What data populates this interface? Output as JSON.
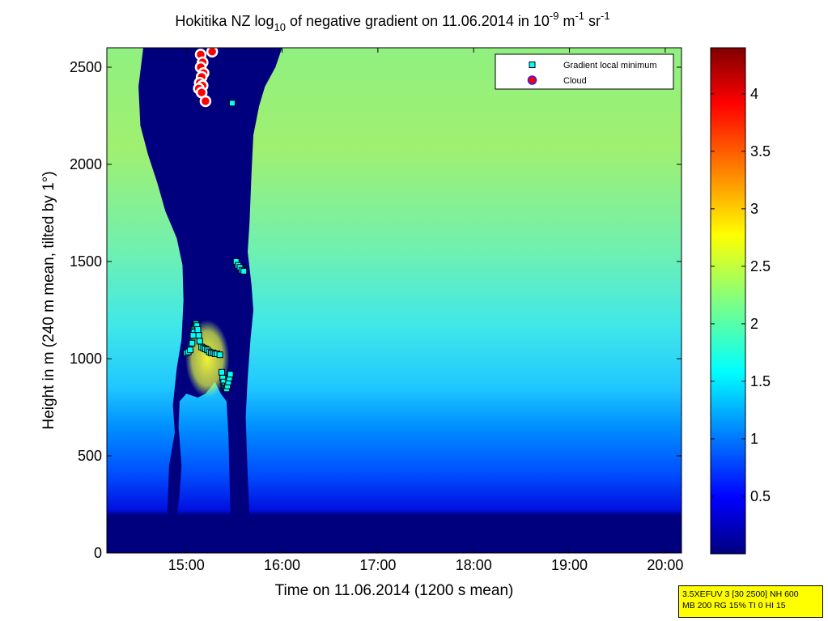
{
  "chart_data": {
    "type": "heatmap",
    "title": {
      "prefix": "Hokitika NZ log",
      "log_sub": "10",
      "middle": " of negative gradient on 11.06.2014 in 10",
      "exp1": "-9",
      "unit1": " m",
      "exp2": "-1",
      "unit2": " sr",
      "exp3": "-1"
    },
    "xlabel": "Time on 11.06.2014 (1200 s mean)",
    "ylabel": "Height in m (240 m mean, tilted by 1°)",
    "x_ticks": [
      "15:00",
      "16:00",
      "17:00",
      "18:00",
      "19:00",
      "20:00"
    ],
    "x_tick_hours": [
      15,
      16,
      17,
      18,
      19,
      20
    ],
    "xlim_hours": [
      14.17,
      20.17
    ],
    "y_ticks": [
      0,
      500,
      1000,
      1500,
      2000,
      2500
    ],
    "ylim": [
      0,
      2600
    ],
    "colorbar": {
      "ticks": [
        0.5,
        1,
        1.5,
        2,
        2.5,
        3,
        3.5,
        4
      ],
      "tick_labels": [
        "0.5",
        "1",
        "1.5",
        "2",
        "2.5",
        "3",
        "3.5",
        "4"
      ],
      "range": [
        0,
        4.4
      ],
      "colormap": "jet"
    },
    "legend": {
      "placement": "top-right",
      "entries": [
        {
          "label": "Gradient local minimum",
          "marker": "square",
          "color": "#00ffff"
        },
        {
          "label": "Cloud",
          "marker": "circle",
          "color": "#ff0000"
        }
      ]
    },
    "gradient_local_minimum": [
      [
        15.48,
        2315
      ],
      [
        15.15,
        2495
      ],
      [
        15.52,
        1500
      ],
      [
        15.54,
        1480
      ],
      [
        15.56,
        1470
      ],
      [
        15.58,
        1455
      ],
      [
        15.6,
        1450
      ],
      [
        15.0,
        1030
      ],
      [
        15.02,
        1035
      ],
      [
        15.04,
        1045
      ],
      [
        15.06,
        1080
      ],
      [
        15.07,
        1120
      ],
      [
        15.08,
        1150
      ],
      [
        15.09,
        1165
      ],
      [
        15.1,
        1180
      ],
      [
        15.11,
        1170
      ],
      [
        15.12,
        1150
      ],
      [
        15.13,
        1120
      ],
      [
        15.14,
        1090
      ],
      [
        15.16,
        1060
      ],
      [
        15.18,
        1055
      ],
      [
        15.2,
        1050
      ],
      [
        15.22,
        1045
      ],
      [
        15.24,
        1035
      ],
      [
        15.26,
        1030
      ],
      [
        15.28,
        1030
      ],
      [
        15.3,
        1025
      ],
      [
        15.32,
        1025
      ],
      [
        15.35,
        1020
      ],
      [
        15.37,
        930
      ],
      [
        15.38,
        900
      ],
      [
        15.39,
        880
      ],
      [
        15.4,
        860
      ],
      [
        15.41,
        850
      ],
      [
        15.42,
        845
      ],
      [
        15.43,
        860
      ],
      [
        15.44,
        880
      ],
      [
        15.45,
        900
      ],
      [
        15.46,
        920
      ]
    ],
    "cloud": [
      [
        15.15,
        2565
      ],
      [
        15.27,
        2580
      ],
      [
        15.17,
        2525
      ],
      [
        15.15,
        2500
      ],
      [
        15.18,
        2470
      ],
      [
        15.16,
        2450
      ],
      [
        15.14,
        2420
      ],
      [
        15.17,
        2405
      ],
      [
        15.13,
        2390
      ],
      [
        15.16,
        2370
      ],
      [
        15.2,
        2325
      ]
    ]
  },
  "info_box": {
    "line1": "3.5XEFUV 3 [30 2500] NH 600",
    "line2": "MB 200 RG 15% TI 0 HI 15"
  }
}
